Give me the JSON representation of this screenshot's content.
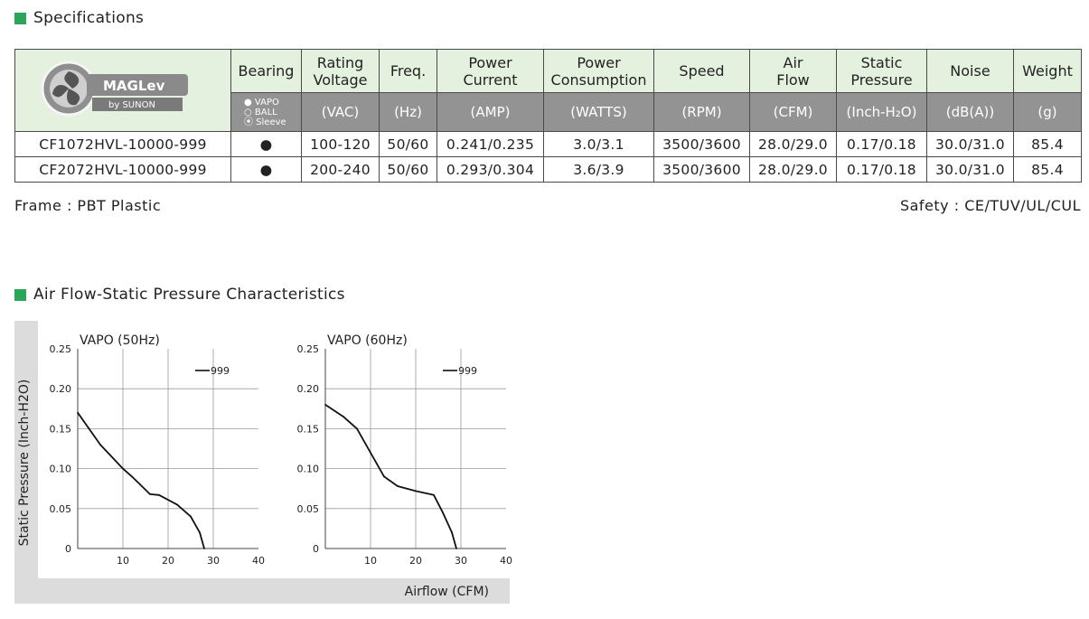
{
  "specs_title": "Specifications",
  "headers": {
    "bearing": "Bearing",
    "rating_voltage": [
      "Rating",
      "Voltage"
    ],
    "freq": "Freq.",
    "power_current": [
      "Power",
      "Current"
    ],
    "power_consumption": [
      "Power",
      "Consumption"
    ],
    "speed": "Speed",
    "air_flow": [
      "Air",
      "Flow"
    ],
    "static_pressure": [
      "Static",
      "Pressure"
    ],
    "noise": "Noise",
    "weight": "Weight"
  },
  "units": {
    "bearing_opts": [
      "● VAPO",
      "○ BALL",
      "⦿ Sleeve"
    ],
    "voltage": "(VAC)",
    "freq": "(Hz)",
    "current": "(AMP)",
    "watts": "(WATTS)",
    "speed": "(RPM)",
    "flow": "(CFM)",
    "pressure": "(Inch-H₂O)",
    "noise": "(dB(A))",
    "weight": "(g)"
  },
  "logo": {
    "text": "MAGLev",
    "sub": "by SUNON"
  },
  "rows": [
    {
      "model": "CF1072HVL-10000-999",
      "bearing": "●",
      "voltage": "100-120",
      "freq": "50/60",
      "current": "0.241/0.235",
      "watts": "3.0/3.1",
      "speed": "3500/3600",
      "flow": "28.0/29.0",
      "pressure": "0.17/0.18",
      "noise": "30.0/31.0",
      "weight": "85.4"
    },
    {
      "model": "CF2072HVL-10000-999",
      "bearing": "●",
      "voltage": "200-240",
      "freq": "50/60",
      "current": "0.293/0.304",
      "watts": "3.6/3.9",
      "speed": "3500/3600",
      "flow": "28.0/29.0",
      "pressure": "0.17/0.18",
      "noise": "30.0/31.0",
      "weight": "85.4"
    }
  ],
  "frame": "Frame : PBT Plastic",
  "safety": "Safety : CE/TUV/UL/CUL",
  "chart_title": "Air Flow-Static Pressure Characteristics",
  "colors": {
    "accent": "#2aa55a",
    "header_bg": "#e4f1df",
    "unit_bg": "#939393"
  },
  "chart_data": [
    {
      "type": "line",
      "title": "VAPO (50Hz)",
      "xlabel": "Airflow (CFM)",
      "ylabel": "Static Pressure (Inch-H2O)",
      "xlim": [
        0,
        40
      ],
      "ylim": [
        0,
        0.25
      ],
      "xticks": [
        "10",
        "20",
        "30",
        "40"
      ],
      "yticks": [
        "0",
        "0.05",
        "0.10",
        "0.15",
        "0.20",
        "0.25"
      ],
      "grid": true,
      "legend": "top-right",
      "series": [
        {
          "name": "999",
          "x": [
            0,
            5,
            10,
            12,
            16,
            18,
            22,
            25,
            27,
            28
          ],
          "y": [
            0.17,
            0.13,
            0.1,
            0.09,
            0.068,
            0.067,
            0.055,
            0.04,
            0.02,
            0
          ]
        }
      ]
    },
    {
      "type": "line",
      "title": "VAPO (60Hz)",
      "xlabel": "Airflow (CFM)",
      "ylabel": "Static Pressure (Inch-H2O)",
      "xlim": [
        0,
        40
      ],
      "ylim": [
        0,
        0.25
      ],
      "xticks": [
        "10",
        "20",
        "30",
        "40"
      ],
      "yticks": [
        "0",
        "0.05",
        "0.10",
        "0.15",
        "0.20",
        "0.25"
      ],
      "grid": true,
      "legend": "top-right",
      "series": [
        {
          "name": "999",
          "x": [
            0,
            4,
            7,
            10,
            13,
            16,
            20,
            24,
            26,
            28,
            29
          ],
          "y": [
            0.18,
            0.165,
            0.15,
            0.12,
            0.09,
            0.078,
            0.072,
            0.067,
            0.045,
            0.02,
            0
          ]
        }
      ]
    }
  ]
}
